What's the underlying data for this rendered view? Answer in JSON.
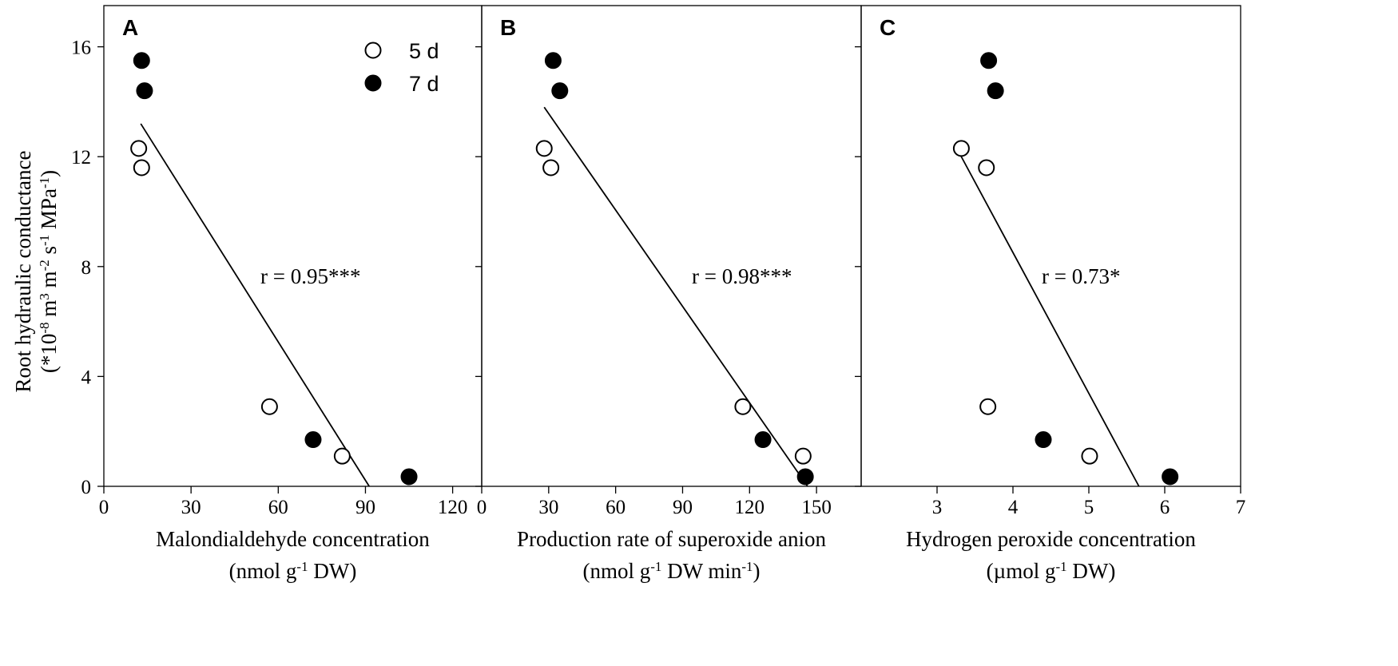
{
  "y_axis": {
    "label_line1": "Root hydraulic conductance",
    "label_line2": {
      "prefix": "(*10",
      "exp1": "-8",
      "mid1": " m",
      "exp2": "3",
      "mid2": " m",
      "exp3": "-2",
      "mid3": " s",
      "exp4": "-1",
      "mid4": " MPa",
      "exp5": "-1",
      "suffix": ")"
    },
    "ticks": [
      "0",
      "4",
      "8",
      "12",
      "16"
    ]
  },
  "legend": {
    "items": [
      {
        "label": "5 d",
        "marker": "open-circle"
      },
      {
        "label": "7 d",
        "marker": "filled-circle"
      }
    ]
  },
  "chart_data": [
    {
      "panel": "A",
      "type": "scatter",
      "xlabel_line1": "Malondialdehyde concentration",
      "xlabel_line2": {
        "prefix": "(nmol g",
        "exp": "-1",
        "suffix": " DW)"
      },
      "xlim": [
        0,
        130
      ],
      "ylim": [
        0,
        17.5
      ],
      "xticks": [
        0,
        30,
        60,
        90,
        120
      ],
      "yticks": [
        0,
        4,
        8,
        12,
        16
      ],
      "annotation": "r = 0.95***",
      "series": [
        {
          "name": "5 d",
          "marker": "open-circle",
          "x": [
            12,
            13,
            57,
            82
          ],
          "y": [
            12.3,
            11.6,
            2.9,
            1.1
          ]
        },
        {
          "name": "7 d",
          "marker": "filled-circle",
          "x": [
            13,
            14,
            72,
            105
          ],
          "y": [
            15.5,
            14.4,
            1.7,
            0.35
          ]
        }
      ],
      "fit_line": {
        "x": [
          12.7,
          91.3
        ],
        "y": [
          13.2,
          0
        ]
      }
    },
    {
      "panel": "B",
      "type": "scatter",
      "xlabel_line1": "Production rate of superoxide anion",
      "xlabel_line2": {
        "prefix": "(nmol g",
        "exp": "-1",
        "mid": " DW min",
        "exp2": "-1",
        "suffix": ")"
      },
      "xlim": [
        0,
        170
      ],
      "ylim": [
        0,
        17.5
      ],
      "xticks": [
        0,
        30,
        60,
        90,
        120,
        150
      ],
      "yticks": [
        0,
        4,
        8,
        12,
        16
      ],
      "annotation": "r = 0.98***",
      "series": [
        {
          "name": "5 d",
          "marker": "open-circle",
          "x": [
            28,
            31,
            117,
            144
          ],
          "y": [
            12.3,
            11.6,
            2.9,
            1.1
          ]
        },
        {
          "name": "7 d",
          "marker": "filled-circle",
          "x": [
            32,
            35,
            126,
            145
          ],
          "y": [
            15.5,
            14.4,
            1.7,
            0.35
          ]
        }
      ],
      "fit_line": {
        "x": [
          28,
          146
        ],
        "y": [
          13.8,
          0
        ]
      }
    },
    {
      "panel": "C",
      "type": "scatter",
      "xlabel_line1": "Hydrogen peroxide concentration",
      "xlabel_line2": {
        "prefix": "(µmol g",
        "exp": "-1",
        "suffix": " DW)"
      },
      "xlim": [
        2,
        7
      ],
      "ylim": [
        0,
        17.5
      ],
      "xticks": [
        3,
        4,
        5,
        6,
        7
      ],
      "yticks": [
        0,
        4,
        8,
        12,
        16
      ],
      "annotation": "r = 0.73*",
      "series": [
        {
          "name": "5 d",
          "marker": "open-circle",
          "x": [
            3.32,
            3.65,
            3.67,
            5.01
          ],
          "y": [
            12.3,
            11.6,
            2.9,
            1.1
          ]
        },
        {
          "name": "7 d",
          "marker": "filled-circle",
          "x": [
            3.68,
            3.77,
            4.4,
            6.07
          ],
          "y": [
            15.5,
            14.4,
            1.7,
            0.35
          ]
        }
      ],
      "fit_line": {
        "x": [
          3.3,
          5.66
        ],
        "y": [
          12.1,
          0
        ]
      }
    }
  ]
}
